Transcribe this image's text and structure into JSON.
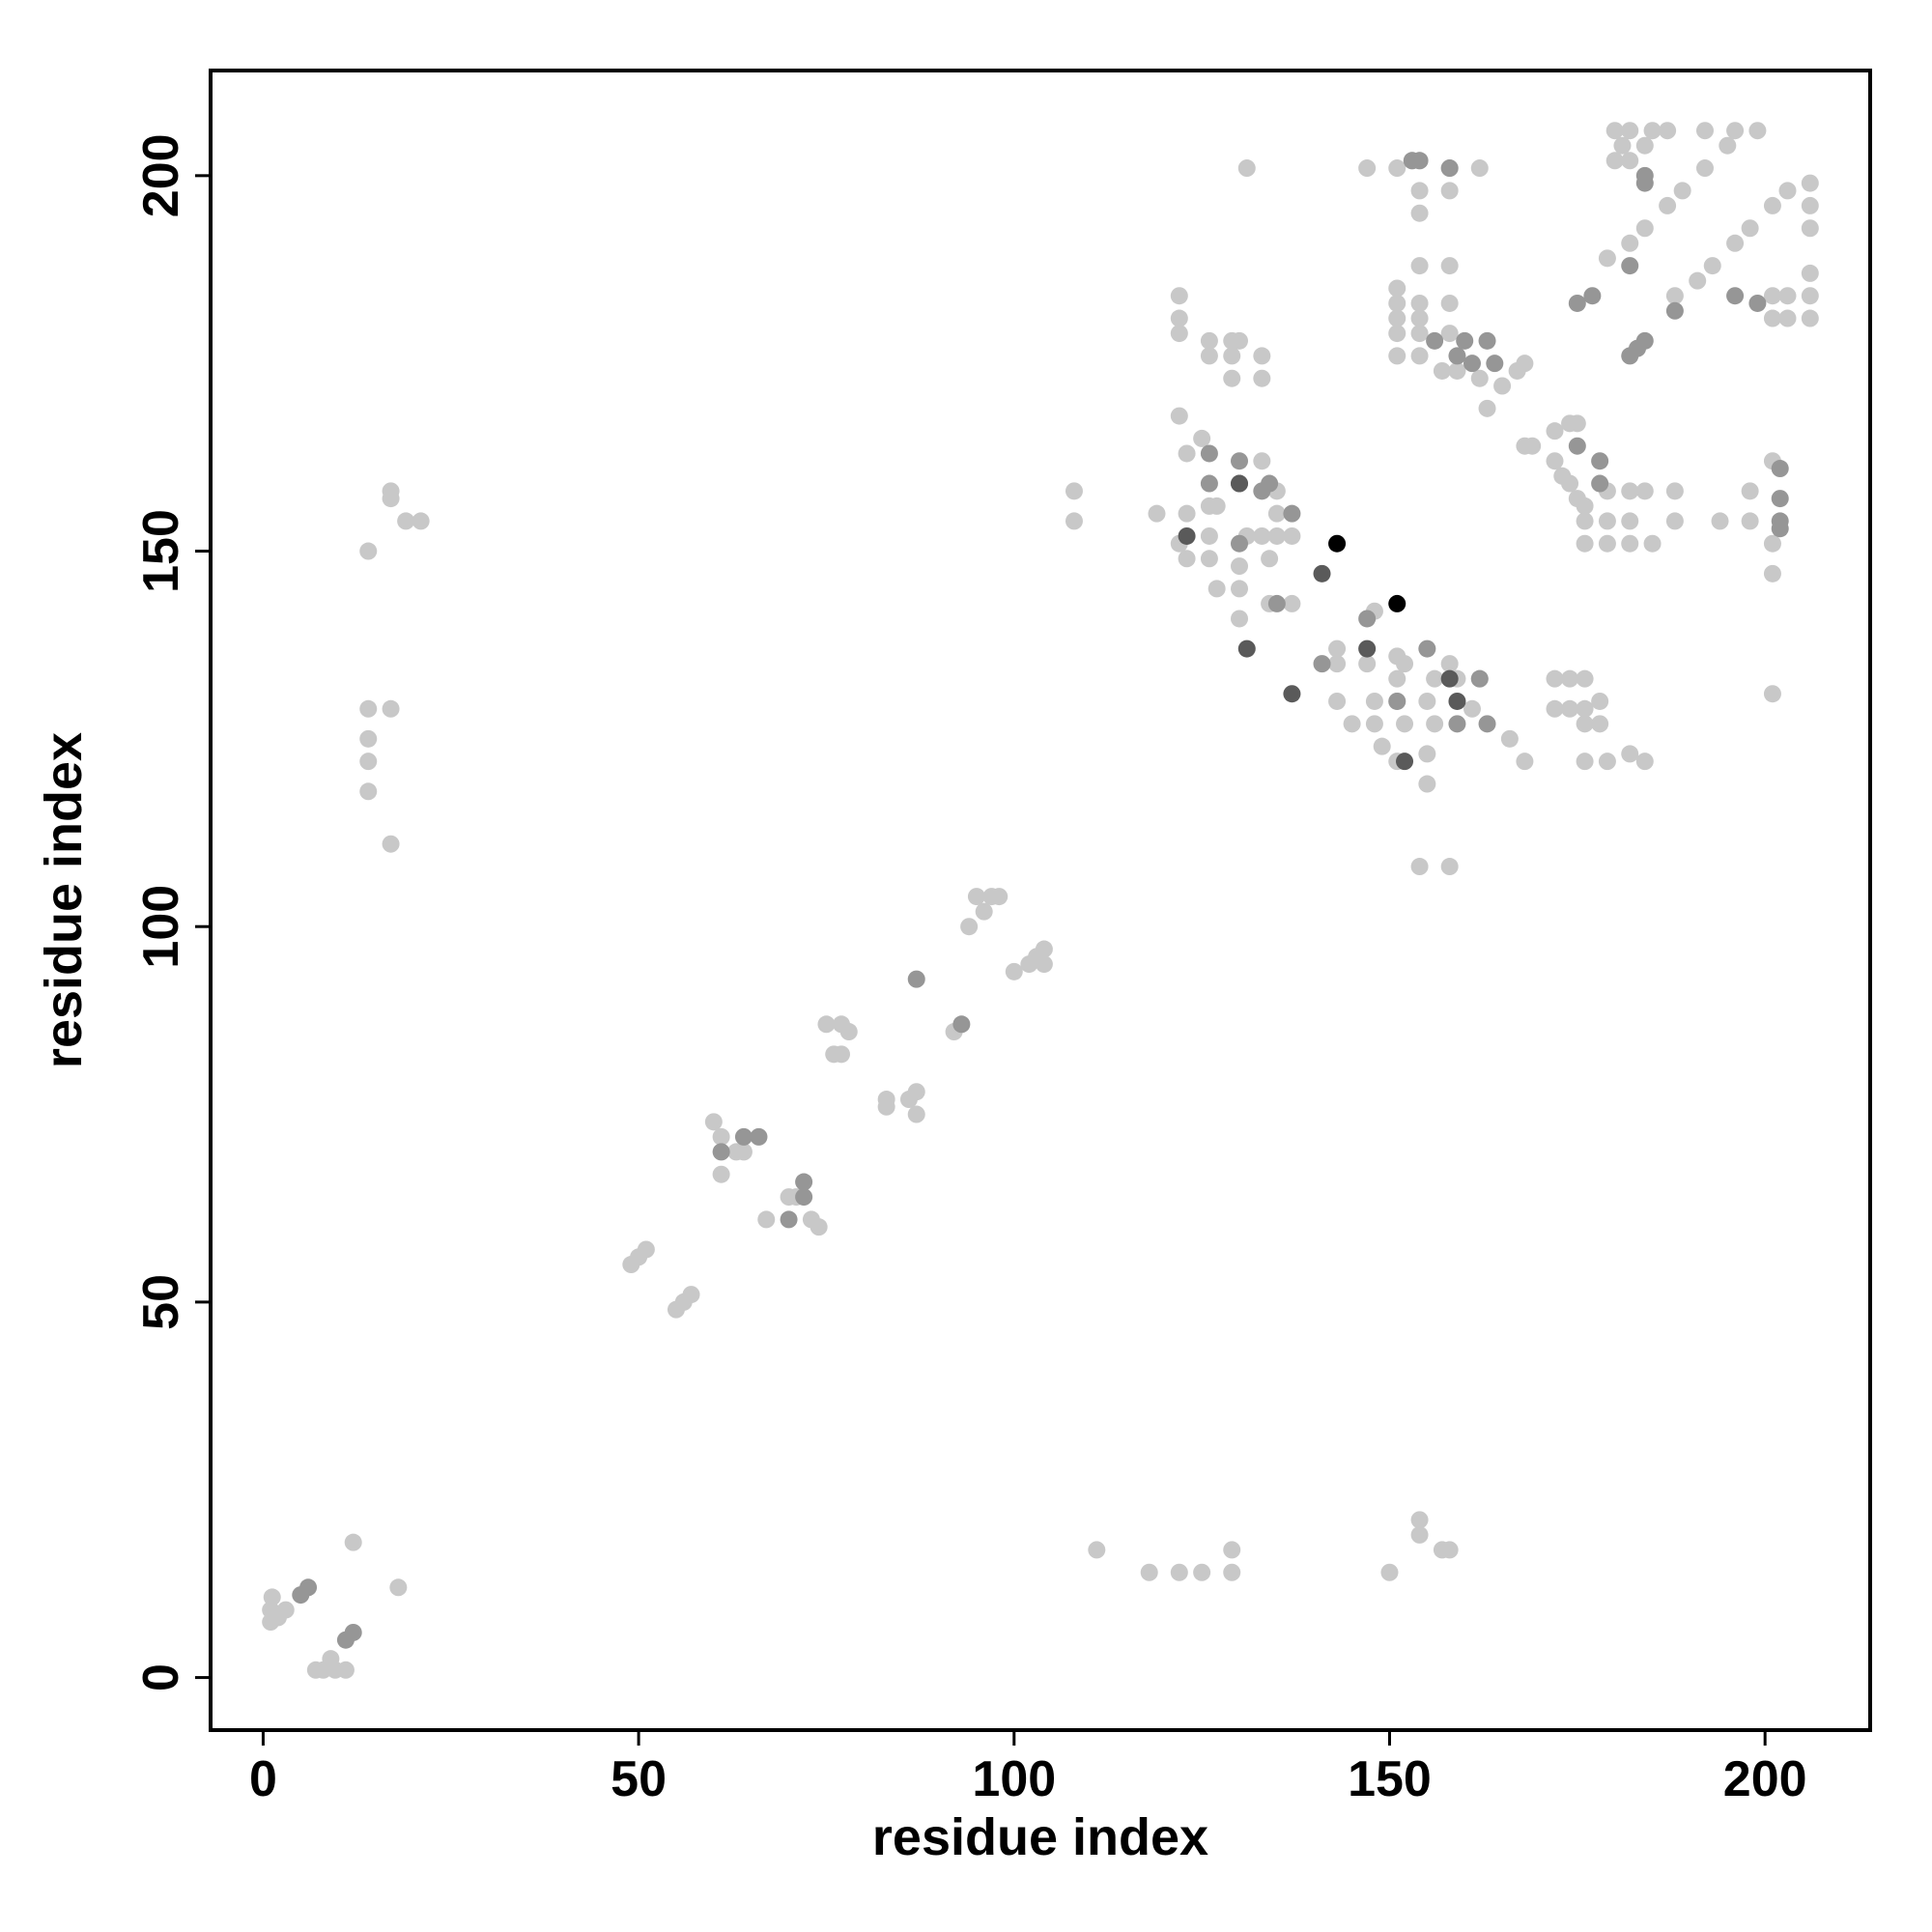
{
  "chart_data": {
    "type": "scatter",
    "x_label": "residue index",
    "y_label": "residue index",
    "xlim": [
      -7,
      214
    ],
    "ylim": [
      -7,
      214
    ],
    "xticks": [
      0,
      50,
      100,
      150,
      200
    ],
    "yticks": [
      0,
      50,
      100,
      150,
      200
    ],
    "grid": false,
    "series": [
      {
        "color": "#c8c8c8",
        "x": [
          1.2,
          1,
          1,
          3,
          7,
          9,
          9.6,
          11,
          12,
          18,
          2,
          8,
          14,
          17,
          17,
          19,
          21,
          14,
          17,
          14,
          14,
          14,
          17,
          49,
          50,
          51,
          55,
          56,
          57,
          60,
          61,
          61,
          63,
          64,
          67,
          70,
          71,
          74,
          73,
          75,
          77,
          78,
          76,
          77,
          83,
          83,
          87,
          87,
          86,
          92,
          94,
          95,
          97,
          98,
          96,
          100,
          102,
          104,
          104,
          103,
          111,
          118,
          122,
          125,
          129,
          129,
          150,
          154,
          154,
          157,
          158,
          108,
          108,
          119,
          122,
          122,
          122,
          126,
          126,
          129,
          130,
          129,
          129,
          133,
          133,
          131,
          147,
          151,
          153,
          154,
          158,
          162,
          154,
          158,
          154,
          154,
          158,
          151,
          151,
          151,
          151,
          151,
          154,
          154,
          154,
          154,
          158,
          158,
          157,
          159,
          162,
          163,
          165,
          167,
          168,
          180,
          182,
          185,
          187,
          180,
          182,
          181,
          184,
          192,
          196,
          199,
          195,
          192,
          189,
          187,
          184,
          182,
          179,
          188,
          191,
          193,
          196,
          198,
          201,
          203,
          206,
          206,
          206,
          201,
          203,
          206,
          201,
          203,
          206,
          206,
          122,
          123,
          125,
          123,
          126,
          127,
          126,
          126,
          122,
          123,
          127,
          130,
          130,
          130,
          133,
          135,
          134,
          135,
          135,
          137,
          137,
          134,
          131,
          133,
          143,
          143,
          143,
          145,
          147,
          148,
          148,
          148,
          149,
          151,
          151,
          151,
          151,
          152,
          152,
          155,
          155,
          155,
          156,
          156,
          158,
          159,
          161,
          162,
          166,
          168,
          154,
          158,
          168,
          169,
          172,
          174,
          175,
          172,
          173,
          174,
          175,
          176,
          176,
          176,
          179,
          182,
          185,
          179,
          182,
          179,
          182,
          184,
          188,
          188,
          172,
          174,
          176,
          172,
          174,
          176,
          178,
          176,
          178,
          176,
          179,
          182,
          184,
          194,
          198,
          198,
          201,
          201,
          201,
          201
        ],
        "y": [
          10.7,
          9,
          7.4,
          9,
          1,
          2.5,
          1,
          1,
          18,
          12,
          8,
          1,
          150,
          158,
          157,
          154,
          154,
          129,
          129,
          125,
          122,
          118,
          111,
          55,
          56,
          57,
          49,
          50,
          51,
          74,
          72,
          67,
          70,
          70,
          61,
          64,
          64,
          60,
          61,
          87,
          87,
          86,
          83,
          83,
          77,
          76,
          78,
          75,
          77,
          86,
          100,
          104,
          104,
          104,
          102,
          94,
          95,
          97,
          95,
          96,
          17,
          14,
          14,
          14,
          17,
          14,
          14,
          21,
          19,
          17,
          17,
          158,
          154,
          155,
          184,
          181,
          179,
          178,
          176,
          178,
          178,
          176,
          173,
          176,
          173,
          201,
          201,
          201,
          202,
          202,
          201,
          201,
          198,
          198,
          195,
          188,
          188,
          185,
          183,
          181,
          179,
          176,
          183,
          181,
          179,
          176,
          183,
          179,
          174,
          174,
          173,
          169,
          172,
          174,
          175,
          206,
          206,
          206,
          206,
          202,
          202,
          204,
          204,
          206,
          206,
          206,
          204,
          201,
          198,
          196,
          193,
          191,
          189,
          184,
          186,
          188,
          191,
          193,
          196,
          198,
          199,
          196,
          193,
          184,
          184,
          184,
          181,
          181,
          181,
          187,
          168,
          163,
          165,
          155,
          156,
          156,
          152,
          149,
          151,
          149,
          145,
          148,
          145,
          141,
          152,
          152,
          149,
          158,
          155,
          152,
          143,
          143,
          152,
          162,
          137,
          135,
          130,
          127,
          135,
          142,
          130,
          127,
          124,
          136,
          133,
          130,
          122,
          135,
          127,
          130,
          123,
          119,
          133,
          127,
          135,
          133,
          129,
          133,
          125,
          122,
          108,
          108,
          164,
          164,
          166,
          167,
          167,
          162,
          160,
          159,
          157,
          156,
          154,
          151,
          151,
          151,
          151,
          154,
          154,
          158,
          158,
          158,
          158,
          154,
          133,
          133,
          133,
          129,
          129,
          129,
          130,
          127,
          127,
          122,
          122,
          123,
          122,
          154,
          158,
          154,
          162,
          151,
          147,
          131
        ]
      },
      {
        "color": "#969696",
        "x": [
          5,
          6,
          11,
          12,
          61,
          64,
          66,
          70,
          72,
          72,
          87,
          93,
          175,
          177,
          182,
          184,
          184,
          188,
          196,
          199,
          184,
          183,
          182,
          126,
          126,
          130,
          133,
          134,
          137,
          135,
          130,
          130,
          147,
          141,
          151,
          155,
          159,
          163,
          162,
          175,
          178,
          178,
          202,
          202,
          202,
          202,
          160,
          159,
          161,
          163,
          164,
          156,
          153,
          154,
          158
        ],
        "y": [
          11,
          12,
          5,
          6,
          70,
          72,
          72,
          61,
          66,
          64,
          93,
          87,
          183,
          184,
          188,
          200,
          199,
          182,
          184,
          183,
          178,
          177,
          176,
          163,
          159,
          159,
          158,
          159,
          155,
          143,
          162,
          151,
          141,
          135,
          130,
          137,
          127,
          127,
          133,
          164,
          162,
          159,
          161,
          157,
          154,
          153,
          178,
          176,
          175,
          178,
          175,
          178,
          202,
          202,
          201
        ]
      },
      {
        "color": "#5a5a5a",
        "x": [
          123,
          131,
          137,
          141,
          147,
          152,
          159,
          158,
          130
        ],
        "y": [
          152,
          137,
          131,
          147,
          137,
          122,
          130,
          133,
          159
        ]
      },
      {
        "color": "#000000",
        "x": [
          143,
          151
        ],
        "y": [
          151,
          143
        ]
      }
    ]
  }
}
